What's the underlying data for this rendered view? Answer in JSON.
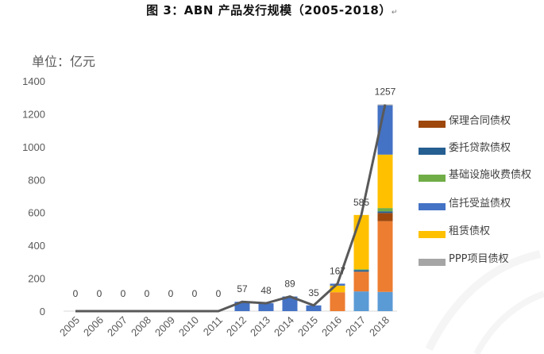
{
  "title": "图 3：ABN 产品发行规模（2005-2018）",
  "title_mark": "↵",
  "chart_data": {
    "type": "bar",
    "stacked": true,
    "unit_label": "单位：亿元",
    "categories": [
      "2005",
      "2006",
      "2007",
      "2008",
      "2009",
      "2010",
      "2011",
      "2012",
      "2013",
      "2014",
      "2015",
      "2016",
      "2017",
      "2018"
    ],
    "ylim": [
      0,
      1400
    ],
    "yticks": [
      0,
      200,
      400,
      600,
      800,
      1000,
      1200,
      1400
    ],
    "grid": false,
    "legend_position": "right",
    "series": [
      {
        "name": "PPP项目债权",
        "color": "#A5A5A5",
        "values": [
          0,
          0,
          0,
          0,
          0,
          0,
          0,
          0,
          0,
          0,
          0,
          0,
          0,
          5
        ]
      },
      {
        "name": "信托受益债权",
        "color": "#4472C4",
        "values": [
          0,
          0,
          0,
          0,
          0,
          0,
          0,
          57,
          48,
          89,
          35,
          12,
          0,
          300
        ]
      },
      {
        "name": "租赁债权",
        "color": "#FFC000",
        "values": [
          0,
          0,
          0,
          0,
          0,
          0,
          0,
          0,
          0,
          0,
          0,
          40,
          330,
          325
        ]
      },
      {
        "name": "基础设施收费债权",
        "color": "#70AD47",
        "values": [
          0,
          0,
          0,
          0,
          0,
          0,
          0,
          0,
          0,
          0,
          0,
          0,
          5,
          20
        ]
      },
      {
        "name": "委托贷款债权",
        "color": "#255E91",
        "values": [
          0,
          0,
          0,
          0,
          0,
          0,
          0,
          0,
          0,
          0,
          0,
          0,
          10,
          10
        ]
      },
      {
        "name": "保理合同债权",
        "color": "#9E480E",
        "values": [
          0,
          0,
          0,
          0,
          0,
          0,
          0,
          0,
          0,
          0,
          0,
          0,
          0,
          50
        ]
      },
      {
        "name": "",
        "color": "#ED7D31",
        "values": [
          0,
          0,
          0,
          0,
          0,
          0,
          0,
          0,
          0,
          0,
          0,
          115,
          120,
          430
        ]
      },
      {
        "name": "",
        "color": "#5B9BD5",
        "values": [
          0,
          0,
          0,
          0,
          0,
          0,
          0,
          0,
          0,
          0,
          0,
          0,
          120,
          117
        ]
      }
    ],
    "totals": [
      0,
      0,
      0,
      0,
      0,
      0,
      0,
      57,
      48,
      89,
      35,
      167,
      585,
      1257
    ],
    "total_labels": [
      "0",
      "0",
      "0",
      "0",
      "0",
      "0",
      "0",
      "57",
      "48",
      "89",
      "35",
      "167",
      "585",
      "1257"
    ],
    "total_line_color": "#595959",
    "legend_entries": [
      {
        "label": "保理合同债权",
        "color": "#9E480E"
      },
      {
        "label": "委托贷款债权",
        "color": "#255E91"
      },
      {
        "label": "基础设施收费债权",
        "color": "#70AD47"
      },
      {
        "label": "信托受益债权",
        "color": "#4472C4"
      },
      {
        "label": "租赁债权",
        "color": "#FFC000"
      },
      {
        "label": "PPP项目债权",
        "color": "#A5A5A5"
      }
    ]
  }
}
